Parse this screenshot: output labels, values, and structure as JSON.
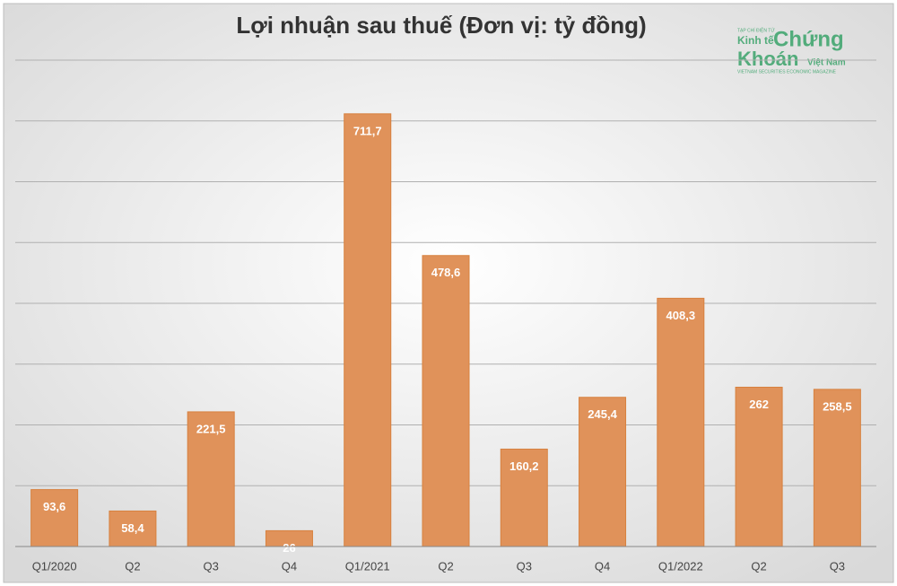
{
  "chart_data": {
    "type": "bar",
    "title": "Lợi nhuận sau thuế (Đơn vị: tỷ đồng)",
    "categories": [
      "Q1/2020",
      "Q2",
      "Q3",
      "Q4",
      "Q1/2021",
      "Q2",
      "Q3",
      "Q4",
      "Q1/2022",
      "Q2",
      "Q3"
    ],
    "values": [
      93.6,
      58.4,
      221.5,
      26,
      711.7,
      478.6,
      160.2,
      245.4,
      408.3,
      262,
      258.5
    ],
    "value_labels": [
      "93,6",
      "58,4",
      "221,5",
      "26",
      "711,7",
      "478,6",
      "160,2",
      "245,4",
      "408,3",
      "262",
      "258,5"
    ],
    "color": "#e0925a",
    "ylim": [
      0,
      800
    ],
    "gridlines": [
      100,
      200,
      300,
      400,
      500,
      600,
      700,
      800
    ],
    "grid": true,
    "watermark": {
      "top": "TẠP CHÍ ĐIỆN TỬ",
      "left": "Kinh tế",
      "main1": "Chứng",
      "main2": "Khoán",
      "right": "Việt Nam",
      "bottom": "VIETNAM SECURITIES ECONOMIC MAGAZINE"
    }
  }
}
